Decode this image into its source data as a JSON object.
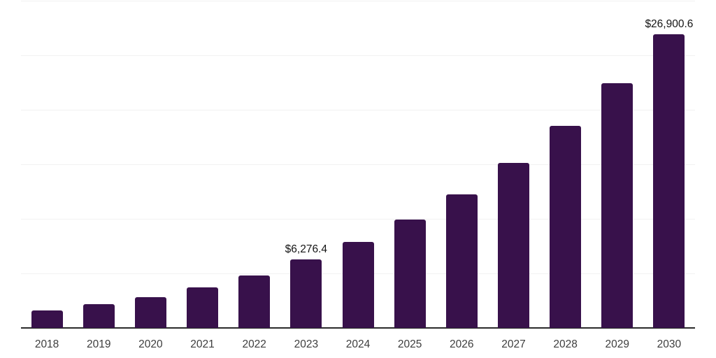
{
  "chart_data": {
    "type": "bar",
    "title": "",
    "xlabel": "",
    "ylabel": "",
    "categories": [
      "2018",
      "2019",
      "2020",
      "2021",
      "2022",
      "2023",
      "2024",
      "2025",
      "2026",
      "2027",
      "2028",
      "2029",
      "2030"
    ],
    "values": [
      1600,
      2150,
      2830,
      3750,
      4800,
      6276.4,
      7900,
      9930,
      12260,
      15110,
      18500,
      22410,
      26900.6
    ],
    "annotations": [
      {
        "index": 5,
        "text": "$6,276.4"
      },
      {
        "index": 12,
        "text": "$26,900.6"
      }
    ],
    "ylim": [
      0,
      30000
    ],
    "gridline_step": 5000,
    "grid": true,
    "legend": "none",
    "y_axis_ticks_visible": false,
    "bar_color": "#38114b",
    "axis_line_color": "#2b2b2b",
    "gridline_color": "#f2f2f2",
    "tick_label_color": "#3d3d3d",
    "annotation_color": "#141414"
  }
}
